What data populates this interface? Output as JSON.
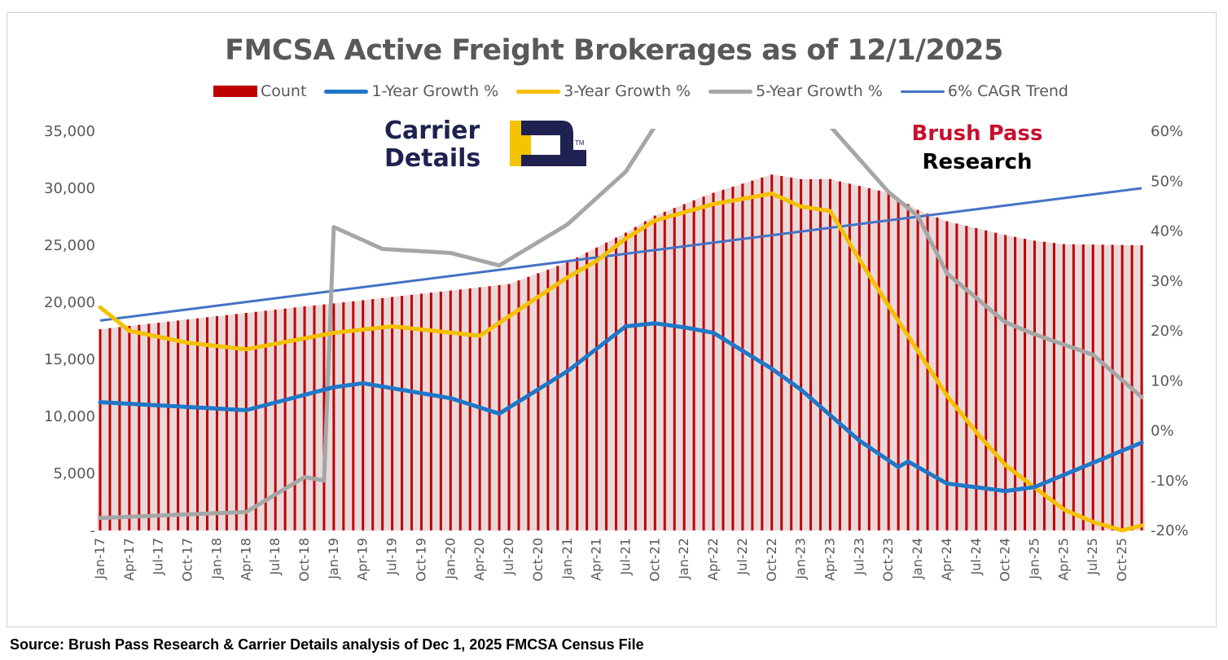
{
  "chart_data": {
    "type": "bar",
    "title": "FMCSA Active Freight Brokerages as of 12/1/2025",
    "start_month": "Jan-17",
    "months_count": 108,
    "x_tick_labels": [
      "Jan-17",
      "Apr-17",
      "Jul-17",
      "Oct-17",
      "Jan-18",
      "Apr-18",
      "Jul-18",
      "Oct-18",
      "Jan-19",
      "Apr-19",
      "Jul-19",
      "Oct-19",
      "Jan-20",
      "Apr-20",
      "Jul-20",
      "Oct-20",
      "Jan-21",
      "Apr-21",
      "Jul-21",
      "Oct-21",
      "Jan-22",
      "Apr-22",
      "Jul-22",
      "Oct-22",
      "Jan-23",
      "Apr-23",
      "Jul-23",
      "Oct-23",
      "Jan-24",
      "Apr-24",
      "Jul-24",
      "Oct-24",
      "Jan-25",
      "Apr-25",
      "Jul-25",
      "Oct-25"
    ],
    "y_left": {
      "ylim": [
        0,
        35000
      ],
      "tick_labels": [
        "-",
        "5,000",
        "10,000",
        "15,000",
        "20,000",
        "25,000",
        "30,000",
        "35,000"
      ]
    },
    "y_right": {
      "ylim": [
        -20,
        60
      ],
      "tick_labels": [
        "-20%",
        "-10%",
        "0%",
        "10%",
        "20%",
        "30%",
        "40%",
        "50%",
        "60%"
      ]
    },
    "legend_position": "top",
    "series": [
      {
        "name": "Count",
        "axis": "left",
        "kind": "bar",
        "color": "#c00000",
        "keypoints": [
          [
            0,
            17640
          ],
          [
            21,
            19640
          ],
          [
            24,
            19900
          ],
          [
            42,
            21600
          ],
          [
            48,
            23500
          ],
          [
            54,
            26100
          ],
          [
            57,
            27600
          ],
          [
            63,
            29600
          ],
          [
            69,
            31200
          ],
          [
            72,
            30800
          ],
          [
            75,
            30800
          ],
          [
            81,
            29600
          ],
          [
            84,
            28100
          ],
          [
            87,
            27100
          ],
          [
            93,
            25900
          ],
          [
            96,
            25400
          ],
          [
            99,
            25100
          ],
          [
            107,
            25000
          ]
        ]
      },
      {
        "name": "1-Year Growth %",
        "axis": "right",
        "kind": "line",
        "color": "#1f77c8",
        "keypoints": [
          [
            0,
            5.7
          ],
          [
            15,
            4.1
          ],
          [
            24,
            8.7
          ],
          [
            27,
            9.5
          ],
          [
            36,
            6.5
          ],
          [
            41,
            3.4
          ],
          [
            48,
            11.9
          ],
          [
            54,
            20.9
          ],
          [
            57,
            21.5
          ],
          [
            60,
            20.7
          ],
          [
            63,
            19.6
          ],
          [
            69,
            12.4
          ],
          [
            72,
            8.2
          ],
          [
            78,
            -2
          ],
          [
            82,
            -7.3
          ],
          [
            83,
            -6.2
          ],
          [
            87,
            -10.6
          ],
          [
            93,
            -12.1
          ],
          [
            96,
            -11.3
          ],
          [
            107,
            -2.4
          ]
        ]
      },
      {
        "name": "3-Year Growth %",
        "axis": "right",
        "kind": "line",
        "color": "#f5c000",
        "keypoints": [
          [
            0,
            24.7
          ],
          [
            3,
            20
          ],
          [
            9,
            17.6
          ],
          [
            15,
            16.3
          ],
          [
            24,
            19.6
          ],
          [
            30,
            20.9
          ],
          [
            39,
            19
          ],
          [
            48,
            30.7
          ],
          [
            51,
            34
          ],
          [
            54,
            38.5
          ],
          [
            57,
            42.1
          ],
          [
            63,
            45.4
          ],
          [
            69,
            47.5
          ],
          [
            72,
            44.9
          ],
          [
            75,
            44
          ],
          [
            78,
            34.3
          ],
          [
            81,
            25
          ],
          [
            84,
            16
          ],
          [
            87,
            7
          ],
          [
            90,
            -0.3
          ],
          [
            93,
            -6.9
          ],
          [
            96,
            -11.4
          ],
          [
            99,
            -15.8
          ],
          [
            102,
            -18.3
          ],
          [
            105,
            -20
          ],
          [
            107,
            -19
          ]
        ]
      },
      {
        "name": "5-Year Growth %",
        "axis": "right",
        "kind": "line",
        "color": "#a6a6a6",
        "keypoints": [
          [
            0,
            -17.5
          ],
          [
            15,
            -16.3
          ],
          [
            21,
            -9.3
          ],
          [
            23,
            -10
          ],
          [
            24,
            40.8
          ],
          [
            29,
            36.4
          ],
          [
            36,
            35.6
          ],
          [
            41,
            33.1
          ],
          [
            48,
            41.3
          ],
          [
            54,
            51.9
          ],
          [
            57,
            61
          ],
          [
            63,
            68
          ],
          [
            69,
            68
          ],
          [
            75,
            61
          ],
          [
            81,
            47.8
          ],
          [
            84,
            43
          ],
          [
            87,
            31.5
          ],
          [
            93,
            21.7
          ],
          [
            96,
            19.3
          ],
          [
            102,
            15.2
          ],
          [
            107,
            6.7
          ]
        ]
      },
      {
        "name": "6% CAGR Trend",
        "axis": "left",
        "kind": "line",
        "color": "#4472c4",
        "start": 18400,
        "end": 30000
      }
    ]
  },
  "logos": {
    "carrier_details": "Carrier Details",
    "carrier_tm": "TM",
    "brush_pass_line1": "Brush Pass",
    "brush_pass_line2": "Research"
  },
  "source": "Source: Brush Pass Research & Carrier Details analysis of Dec 1, 2025 FMCSA Census File"
}
